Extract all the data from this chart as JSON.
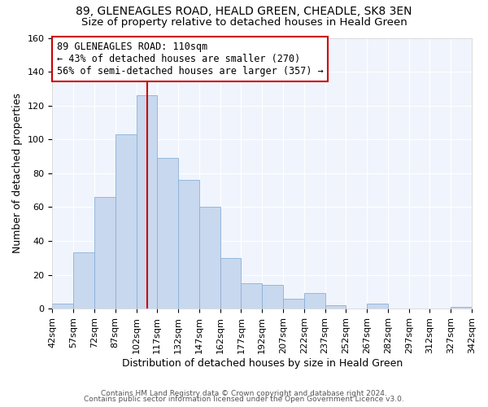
{
  "title": "89, GLENEAGLES ROAD, HEALD GREEN, CHEADLE, SK8 3EN",
  "subtitle": "Size of property relative to detached houses in Heald Green",
  "xlabel": "Distribution of detached houses by size in Heald Green",
  "ylabel": "Number of detached properties",
  "annotation_line1": "89 GLENEAGLES ROAD: 110sqm",
  "annotation_line2": "← 43% of detached houses are smaller (270)",
  "annotation_line3": "56% of semi-detached houses are larger (357) →",
  "footer1": "Contains HM Land Registry data © Crown copyright and database right 2024.",
  "footer2": "Contains public sector information licensed under the Open Government Licence v3.0.",
  "bar_edges": [
    42,
    57,
    72,
    87,
    102,
    117,
    132,
    147,
    162,
    177,
    192,
    207,
    222,
    237,
    252,
    267,
    282,
    297,
    312,
    327,
    342
  ],
  "bar_heights": [
    3,
    33,
    66,
    103,
    126,
    89,
    76,
    60,
    30,
    15,
    14,
    6,
    9,
    2,
    0,
    3,
    0,
    0,
    0,
    1
  ],
  "bar_color": "#c8d8ee",
  "bar_edge_color": "#8ab0d8",
  "vline_x": 110,
  "vline_color": "#cc0000",
  "ylim": [
    0,
    160
  ],
  "xlim": [
    42,
    342
  ],
  "title_fontsize": 10,
  "subtitle_fontsize": 9.5,
  "tick_fontsize": 8,
  "label_fontsize": 9,
  "background_color": "#ffffff",
  "plot_bg_color": "#f0f4fc"
}
